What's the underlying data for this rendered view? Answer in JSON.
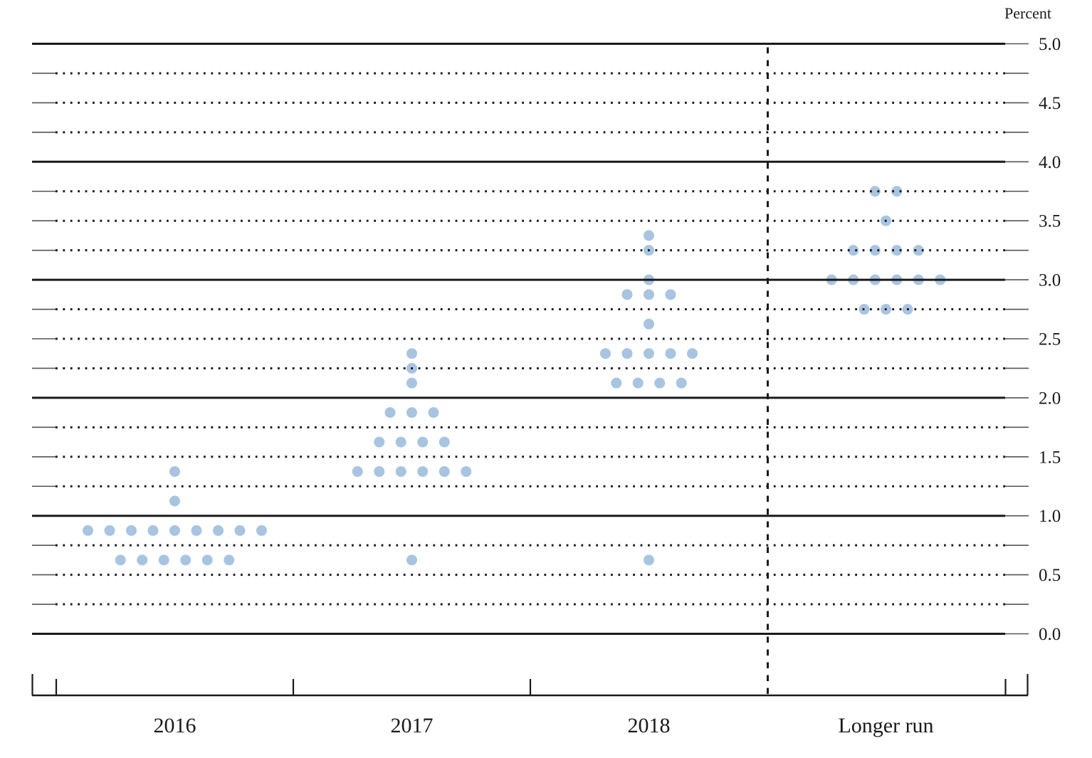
{
  "chart_data": {
    "type": "scatter",
    "variant": "fomc-dot-plot",
    "title": "",
    "ylabel": "Percent",
    "xlabel": "",
    "ylim": [
      0.0,
      5.0
    ],
    "grid": "solid horizontal lines at whole percents, dotted lines at quarter percents, dashed vertical separator before Longer run",
    "legend": "none",
    "y_tick_labels": [
      "5.0",
      "4.5",
      "4.0",
      "3.5",
      "3.0",
      "2.5",
      "2.0",
      "1.5",
      "1.0",
      "0.5",
      "0.0"
    ],
    "categories": [
      "2016",
      "2017",
      "2018",
      "Longer run"
    ],
    "separator_before_category": "Longer run",
    "dot_color": "#a8c4e1",
    "line_color": "#1a1a1a",
    "series": [
      {
        "name": "2016",
        "dots": [
          {
            "y": 1.375,
            "count": 1
          },
          {
            "y": 1.125,
            "count": 1
          },
          {
            "y": 0.875,
            "count": 9
          },
          {
            "y": 0.625,
            "count": 6
          }
        ]
      },
      {
        "name": "2017",
        "dots": [
          {
            "y": 2.375,
            "count": 1
          },
          {
            "y": 2.25,
            "count": 1
          },
          {
            "y": 2.125,
            "count": 1
          },
          {
            "y": 1.875,
            "count": 3
          },
          {
            "y": 1.625,
            "count": 4
          },
          {
            "y": 1.375,
            "count": 6
          },
          {
            "y": 0.625,
            "count": 1
          }
        ]
      },
      {
        "name": "2018",
        "dots": [
          {
            "y": 3.375,
            "count": 1
          },
          {
            "y": 3.25,
            "count": 1
          },
          {
            "y": 3.0,
            "count": 1
          },
          {
            "y": 2.875,
            "count": 3
          },
          {
            "y": 2.625,
            "count": 1
          },
          {
            "y": 2.375,
            "count": 5
          },
          {
            "y": 2.125,
            "count": 4
          },
          {
            "y": 0.625,
            "count": 1
          }
        ]
      },
      {
        "name": "Longer run",
        "dots": [
          {
            "y": 3.75,
            "count": 2
          },
          {
            "y": 3.5,
            "count": 1
          },
          {
            "y": 3.25,
            "count": 4
          },
          {
            "y": 3.0,
            "count": 6
          },
          {
            "y": 2.75,
            "count": 3
          }
        ]
      }
    ]
  }
}
